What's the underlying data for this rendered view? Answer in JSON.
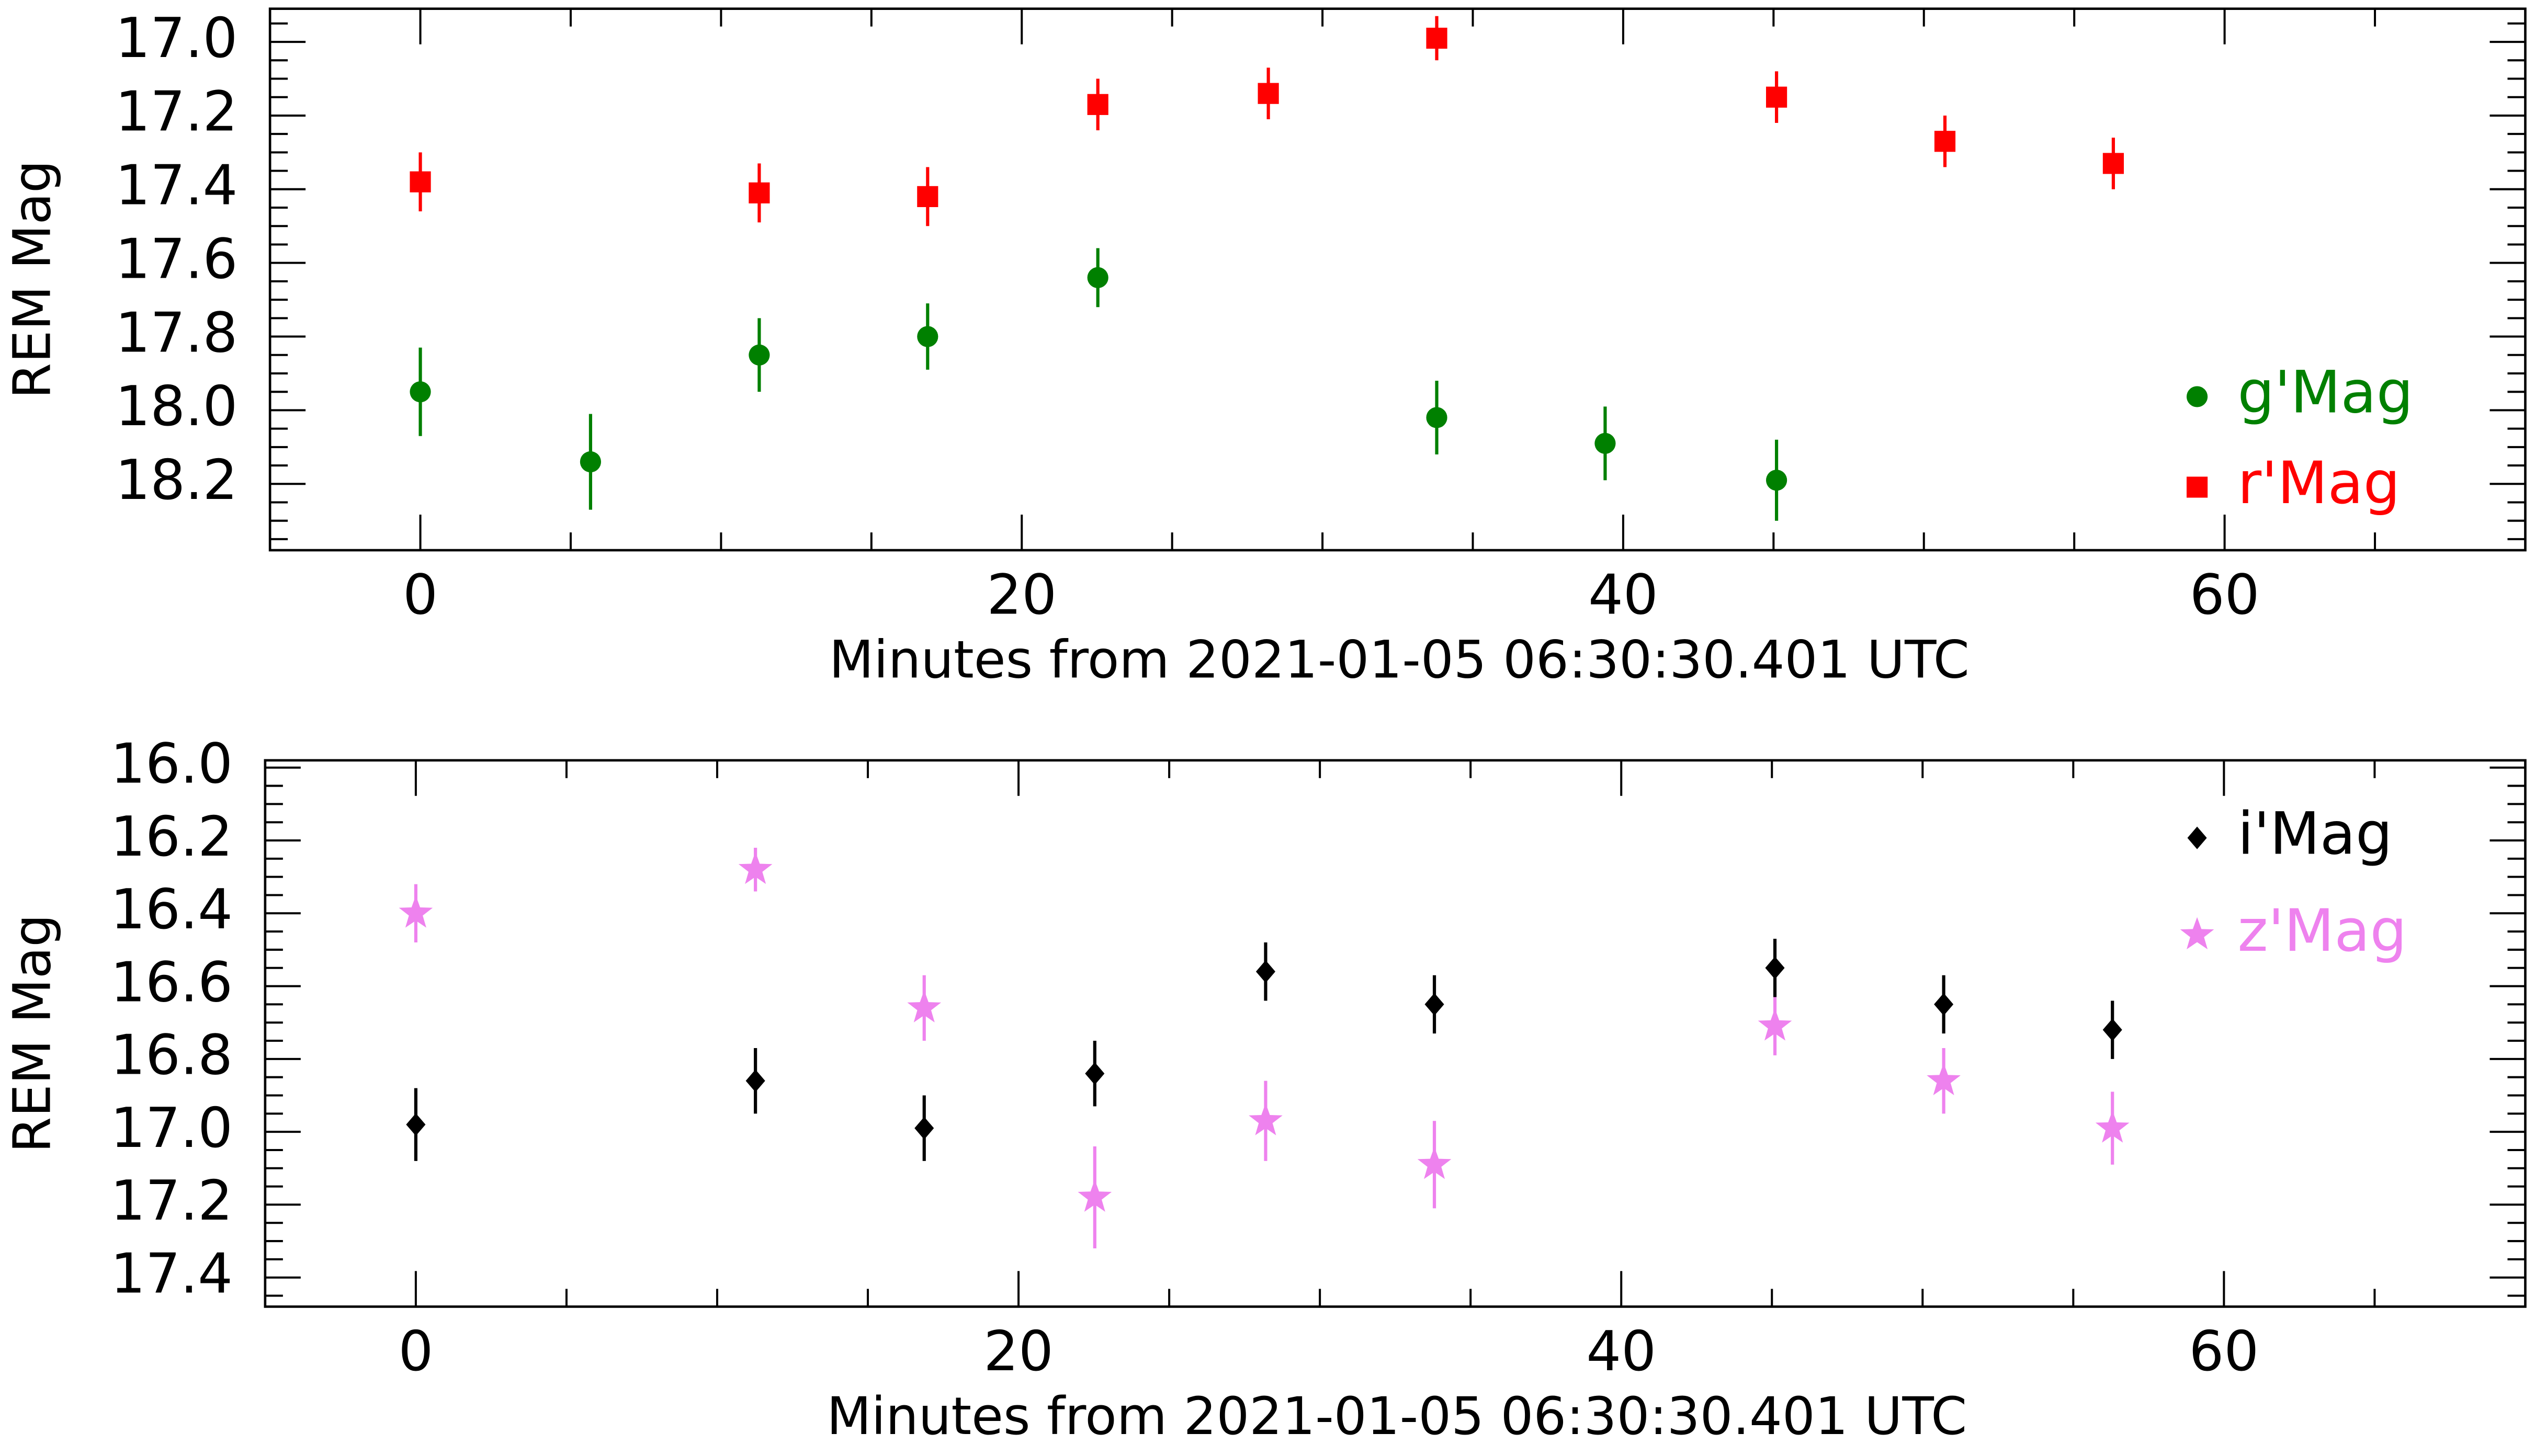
{
  "chart_data": [
    {
      "type": "scatter",
      "x_label": "Minutes from 2021-01-05 06:30:30.401 UTC",
      "y_label": "REM Mag",
      "xlim": [
        -5,
        70
      ],
      "ylim": [
        18.38,
        16.91
      ],
      "xticks": [
        0,
        20,
        40,
        60
      ],
      "yticks": [
        {
          "value": 17.0,
          "label": "17.0"
        },
        17.2,
        17.4,
        17.6,
        17.8,
        {
          "value": 18.0,
          "label": "18.0"
        },
        18.2
      ],
      "legend": "lower right",
      "series": [
        {
          "name": "g'Mag",
          "color": "#008000",
          "marker": "circle",
          "x": [
            0,
            5.66,
            11.27,
            16.87,
            22.53,
            33.8,
            39.4,
            45.1
          ],
          "values": [
            17.95,
            18.14,
            17.85,
            17.8,
            17.64,
            18.02,
            18.09,
            18.19
          ],
          "errors": [
            0.12,
            0.13,
            0.1,
            0.09,
            0.08,
            0.1,
            0.1,
            0.11
          ]
        },
        {
          "name": "r'Mag",
          "color": "#ff0000",
          "marker": "square",
          "x": [
            0,
            11.27,
            16.87,
            22.53,
            28.2,
            33.8,
            45.1,
            50.7,
            56.3
          ],
          "values": [
            17.38,
            17.41,
            17.42,
            17.17,
            17.14,
            16.99,
            17.15,
            17.27,
            17.33
          ],
          "errors": [
            0.08,
            0.08,
            0.08,
            0.07,
            0.07,
            0.06,
            0.07,
            0.07,
            0.07
          ]
        }
      ]
    },
    {
      "type": "scatter",
      "x_label": "Minutes from 2021-01-05 06:30:30.401 UTC",
      "y_label": "REM Mag",
      "xlim": [
        -5,
        70
      ],
      "ylim": [
        17.48,
        15.98
      ],
      "xticks": [
        0,
        20,
        40,
        60
      ],
      "yticks": [
        {
          "value": 16.0,
          "label": "16.0"
        },
        16.2,
        16.4,
        16.6,
        16.8,
        {
          "value": 17.0,
          "label": "17.0"
        },
        17.2,
        17.4
      ],
      "legend": "upper right",
      "series": [
        {
          "name": "i'Mag",
          "color": "#000000",
          "marker": "diamond",
          "x": [
            0,
            11.27,
            16.87,
            22.53,
            28.2,
            33.8,
            45.1,
            50.7,
            56.3
          ],
          "values": [
            16.98,
            16.86,
            16.99,
            16.84,
            16.56,
            16.65,
            16.55,
            16.65,
            16.72
          ],
          "errors": [
            0.1,
            0.09,
            0.09,
            0.09,
            0.08,
            0.08,
            0.08,
            0.08,
            0.08
          ]
        },
        {
          "name": "z'Mag",
          "color": "#ee82ee",
          "marker": "star",
          "x": [
            0,
            11.27,
            16.87,
            22.53,
            28.2,
            33.8,
            45.1,
            50.7,
            56.3
          ],
          "values": [
            16.4,
            16.28,
            16.66,
            17.18,
            16.97,
            17.09,
            16.71,
            16.86,
            16.99
          ],
          "errors": [
            0.08,
            0.06,
            0.09,
            0.14,
            0.11,
            0.12,
            0.08,
            0.09,
            0.1
          ]
        }
      ]
    }
  ]
}
